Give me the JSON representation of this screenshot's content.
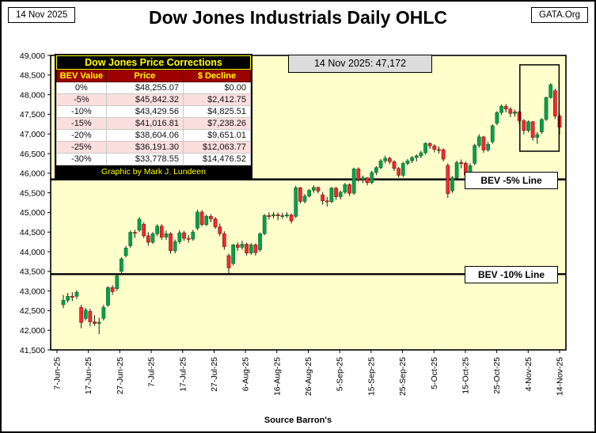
{
  "header": {
    "date_box": "14 Nov 2025",
    "title": "Dow Jones Industrials Daily OHLC",
    "site_box": "GATA.Org"
  },
  "annotation": {
    "label": "14 Nov 2025:  47,172"
  },
  "bev_lines": [
    {
      "label": "BEV -5% Line",
      "price": 45842
    },
    {
      "label": "BEV -10% Line",
      "price": 43430
    }
  ],
  "corrections_table": {
    "title": "Dow Jones Price Corrections",
    "columns": [
      "BEV Value",
      "Price",
      "$ Decline"
    ],
    "rows": [
      [
        "0%",
        "$48,255.07",
        "$0.00"
      ],
      [
        "-5%",
        "$45,842.32",
        "$2,412.75"
      ],
      [
        "-10%",
        "$43,429.56",
        "$4,825.51"
      ],
      [
        "-15%",
        "$41,016.81",
        "$7,238.26"
      ],
      [
        "-20%",
        "$38,604.06",
        "$9,651.01"
      ],
      [
        "-25%",
        "$36,191.30",
        "$12,063.77"
      ],
      [
        "-30%",
        "$33,778.55",
        "$14,476.52"
      ]
    ],
    "credit": "Graphic by Mark J. Lundeen"
  },
  "footer": {
    "source": "Source Barron's"
  },
  "chart_data": {
    "type": "candlestick-ohlc",
    "title": "Dow Jones Industrials Daily OHLC",
    "xlabel": "",
    "ylabel": "",
    "ylim": [
      41500,
      49000
    ],
    "y_tick_step": 500,
    "y_ticks": [
      "49,000",
      "48,500",
      "48,000",
      "47,500",
      "47,000",
      "46,500",
      "46,000",
      "45,500",
      "45,000",
      "44,500",
      "44,000",
      "43,500",
      "43,000",
      "42,500",
      "42,000",
      "41,500"
    ],
    "x_ticks": [
      "7-Jun-25",
      "17-Jun-25",
      "27-Jun-25",
      "7-Jul-25",
      "17-Jul-25",
      "27-Jul-25",
      "6-Aug-25",
      "16-Aug-25",
      "26-Aug-25",
      "5-Sep-25",
      "15-Sep-25",
      "25-Sep-25",
      "5-Oct-25",
      "15-Oct-25",
      "25-Oct-25",
      "4-Nov-25",
      "14-Nov-25"
    ],
    "plot_bg": "#FFFFCC",
    "up_color": "#00A14B",
    "down_color": "#EE2C2C",
    "grid": false,
    "legend": "none",
    "candles": [
      [
        42650,
        42900,
        42560,
        42762
      ],
      [
        42762,
        42950,
        42700,
        42866
      ],
      [
        42866,
        42970,
        42740,
        42865
      ],
      [
        42865,
        43020,
        42800,
        42967
      ],
      [
        42580,
        42650,
        42050,
        42197
      ],
      [
        42300,
        42570,
        42250,
        42515
      ],
      [
        42480,
        42550,
        42100,
        42215
      ],
      [
        42215,
        42380,
        42110,
        42171
      ],
      [
        42171,
        42320,
        41900,
        42206
      ],
      [
        42300,
        42650,
        42250,
        42581
      ],
      [
        42640,
        43120,
        42600,
        43089
      ],
      [
        43089,
        43150,
        42900,
        42982
      ],
      [
        43060,
        43420,
        43000,
        43386
      ],
      [
        43500,
        43860,
        43450,
        43819
      ],
      [
        43900,
        44150,
        43850,
        44094
      ],
      [
        44150,
        44540,
        44100,
        44494
      ],
      [
        44494,
        44560,
        44350,
        44484
      ],
      [
        44550,
        44886,
        44500,
        44828
      ],
      [
        44700,
        44750,
        44350,
        44406
      ],
      [
        44406,
        44500,
        44150,
        44240
      ],
      [
        44240,
        44500,
        44200,
        44458
      ],
      [
        44458,
        44700,
        44400,
        44650
      ],
      [
        44650,
        44700,
        44300,
        44371
      ],
      [
        44371,
        44540,
        44300,
        44459
      ],
      [
        44459,
        44500,
        43950,
        44023
      ],
      [
        44023,
        44310,
        43960,
        44254
      ],
      [
        44254,
        44550,
        44200,
        44484
      ],
      [
        44484,
        44530,
        44280,
        44342
      ],
      [
        44342,
        44430,
        44230,
        44323
      ],
      [
        44323,
        44560,
        44280,
        44502
      ],
      [
        44600,
        45070,
        44550,
        45010
      ],
      [
        45010,
        45060,
        44650,
        44693
      ],
      [
        44693,
        44950,
        44650,
        44901
      ],
      [
        44901,
        44960,
        44750,
        44837
      ],
      [
        44837,
        44880,
        44580,
        44632
      ],
      [
        44632,
        44720,
        44400,
        44461
      ],
      [
        44461,
        44520,
        44050,
        44130
      ],
      [
        43900,
        43950,
        43450,
        43588
      ],
      [
        43700,
        44200,
        43650,
        44173
      ],
      [
        44173,
        44240,
        44020,
        44111
      ],
      [
        44111,
        44280,
        44050,
        44193
      ],
      [
        44193,
        44230,
        43900,
        43968
      ],
      [
        43968,
        44220,
        43920,
        44175
      ],
      [
        44175,
        44210,
        43900,
        43975
      ],
      [
        44050,
        44490,
        44000,
        44458
      ],
      [
        44458,
        44960,
        44420,
        44922
      ],
      [
        44922,
        45000,
        44820,
        44911
      ],
      [
        44911,
        45010,
        44850,
        44946
      ],
      [
        44946,
        45000,
        44800,
        44912
      ],
      [
        44912,
        44990,
        44830,
        44922
      ],
      [
        44922,
        45010,
        44860,
        44938
      ],
      [
        44938,
        44970,
        44720,
        44785
      ],
      [
        44900,
        45680,
        44860,
        45631
      ],
      [
        45631,
        45650,
        45230,
        45282
      ],
      [
        45282,
        45470,
        45230,
        45418
      ],
      [
        45418,
        45600,
        45380,
        45565
      ],
      [
        45565,
        45690,
        45500,
        45637
      ],
      [
        45637,
        45660,
        45480,
        45545
      ],
      [
        45450,
        45520,
        45200,
        45296
      ],
      [
        45296,
        45400,
        45150,
        45271
      ],
      [
        45271,
        45650,
        45240,
        45621
      ],
      [
        45621,
        45650,
        45320,
        45400
      ],
      [
        45400,
        45560,
        45330,
        45515
      ],
      [
        45515,
        45750,
        45470,
        45711
      ],
      [
        45711,
        45740,
        45420,
        45490
      ],
      [
        45490,
        46140,
        45450,
        46108
      ],
      [
        46108,
        46150,
        45780,
        45834
      ],
      [
        45834,
        45940,
        45750,
        45883
      ],
      [
        45883,
        45900,
        45690,
        45758
      ],
      [
        45758,
        46060,
        45720,
        46018
      ],
      [
        46018,
        46180,
        45950,
        46142
      ],
      [
        46142,
        46360,
        46100,
        46315
      ],
      [
        46315,
        46450,
        46250,
        46381
      ],
      [
        46381,
        46420,
        46230,
        46293
      ],
      [
        46293,
        46330,
        46060,
        46121
      ],
      [
        46121,
        46160,
        45890,
        45947
      ],
      [
        45947,
        46290,
        45900,
        46247
      ],
      [
        46247,
        46360,
        46200,
        46316
      ],
      [
        46316,
        46440,
        46260,
        46398
      ],
      [
        46398,
        46480,
        46300,
        46441
      ],
      [
        46441,
        46570,
        46380,
        46520
      ],
      [
        46520,
        46790,
        46480,
        46758
      ],
      [
        46758,
        46790,
        46620,
        46694
      ],
      [
        46694,
        46740,
        46530,
        46603
      ],
      [
        46603,
        46680,
        46500,
        46601
      ],
      [
        46601,
        46630,
        46300,
        46358
      ],
      [
        46200,
        46250,
        45370,
        45480
      ],
      [
        45550,
        45930,
        45500,
        45884
      ],
      [
        45884,
        46320,
        45850,
        46270
      ],
      [
        46270,
        46350,
        46120,
        46253
      ],
      [
        46253,
        46300,
        45880,
        45952
      ],
      [
        46000,
        46250,
        45950,
        46190
      ],
      [
        46250,
        46750,
        46200,
        46707
      ],
      [
        46707,
        46990,
        46650,
        46925
      ],
      [
        46925,
        46950,
        46520,
        46591
      ],
      [
        46591,
        46800,
        46550,
        46735
      ],
      [
        46800,
        47250,
        46750,
        47207
      ],
      [
        47270,
        47580,
        47220,
        47545
      ],
      [
        47545,
        47750,
        47480,
        47707
      ],
      [
        47707,
        47760,
        47550,
        47632
      ],
      [
        47632,
        47680,
        47430,
        47522
      ],
      [
        47522,
        47620,
        47440,
        47563
      ],
      [
        47563,
        47590,
        47250,
        47337
      ],
      [
        47337,
        47380,
        46990,
        47086
      ],
      [
        47086,
        47340,
        47040,
        47311
      ],
      [
        47311,
        47330,
        46830,
        46912
      ],
      [
        46912,
        47050,
        46750,
        46987
      ],
      [
        47050,
        47400,
        47000,
        47369
      ],
      [
        47369,
        47950,
        47330,
        47928
      ],
      [
        47928,
        48290,
        47900,
        48255
      ],
      [
        48100,
        48150,
        47380,
        47457
      ],
      [
        47457,
        47510,
        46990,
        47172
      ]
    ],
    "highlight_box": {
      "from_candle": 103,
      "to_candle": 110,
      "top_price": 48760,
      "bottom_price": 46560
    }
  }
}
